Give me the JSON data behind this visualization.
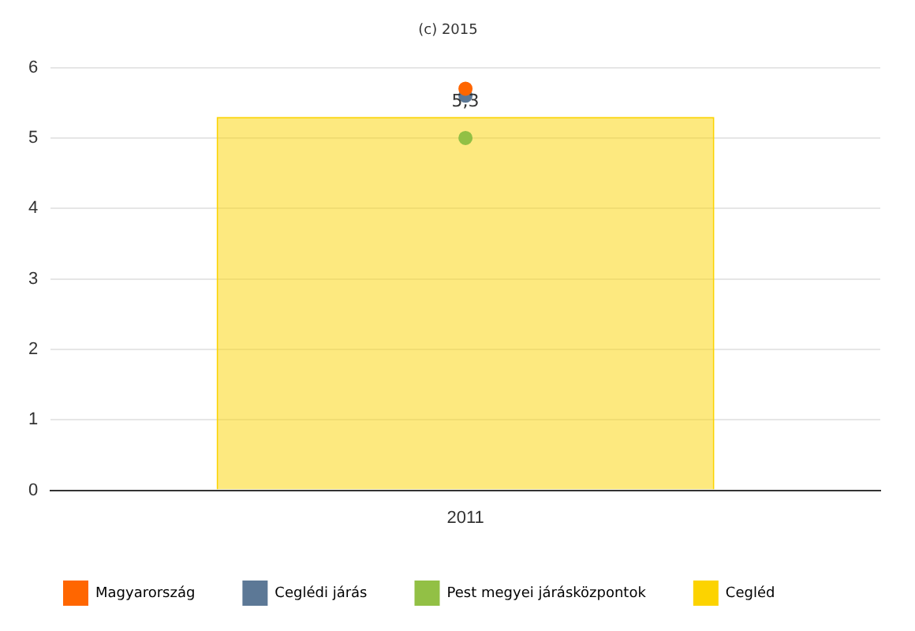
{
  "chart_data": {
    "type": "bar",
    "title": "(c) 2015",
    "categories": [
      "2011"
    ],
    "series": [
      {
        "name": "Magyarország",
        "type": "scatter",
        "color": "#ff6600",
        "values": [
          5.7
        ]
      },
      {
        "name": "Ceglédi járás",
        "type": "scatter",
        "color": "#5c7896",
        "values": [
          5.6
        ]
      },
      {
        "name": "Pest megyei járásközpontok",
        "type": "scatter",
        "color": "#92c045",
        "values": [
          5.0
        ]
      },
      {
        "name": "Cegléd",
        "color": "#fcd300",
        "values": [
          5.3
        ],
        "value_labels": [
          "5,3"
        ]
      }
    ],
    "ylim": [
      0,
      6
    ],
    "yticks": [
      0,
      1,
      2,
      3,
      4,
      5,
      6
    ],
    "grid": "y",
    "legend": "bottom",
    "marker": "circle"
  }
}
